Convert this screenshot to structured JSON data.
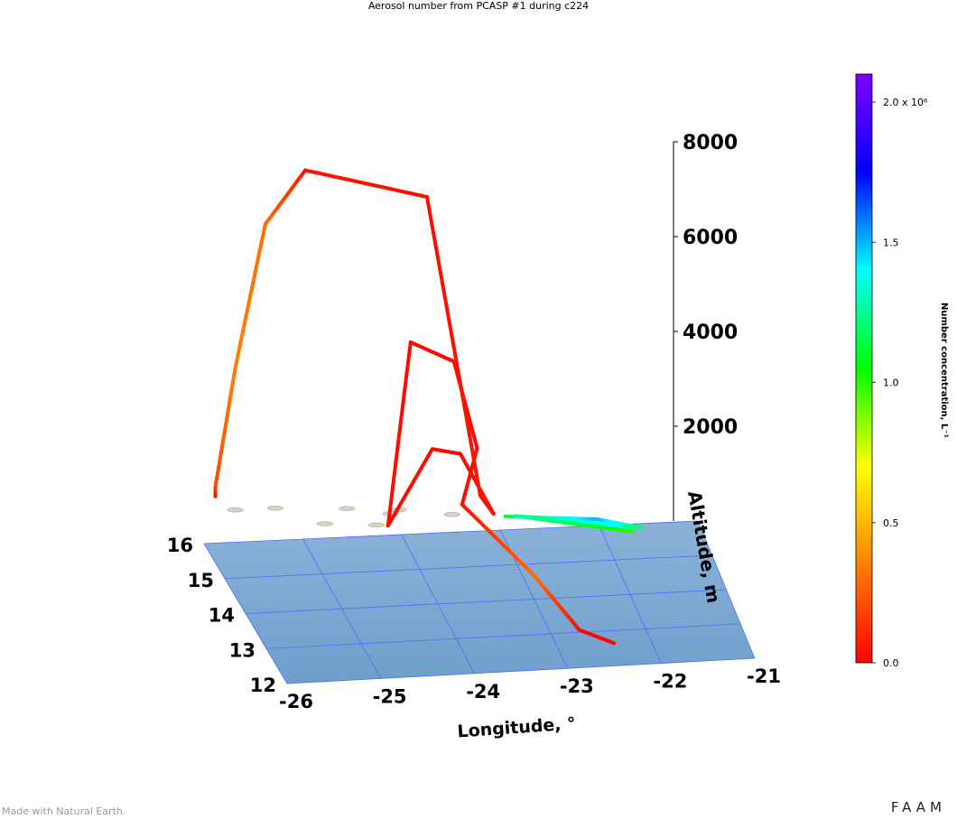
{
  "title": "Aerosol number from PCASP #1 during c224",
  "credit": "Made with Natural Earth.",
  "brand": "FAAM",
  "colorbar": {
    "label": "Number concentration, L⁻¹",
    "ticks": [
      {
        "value": 0.0,
        "label": "0.0"
      },
      {
        "value": 0.5,
        "label": "0.5"
      },
      {
        "value": 1.0,
        "label": "1.0"
      },
      {
        "value": 1.5,
        "label": "1.5"
      },
      {
        "value": 2.0,
        "label": "2.0 x 10⁶"
      }
    ],
    "range": [
      0,
      2.1
    ],
    "colormap": [
      "#ff0000",
      "#ff8000",
      "#ffff00",
      "#00ff00",
      "#00ffff",
      "#0000ff",
      "#8000ff"
    ]
  },
  "chart_data": {
    "type": "line",
    "projection": "3d",
    "title": "Aerosol number from PCASP #1 during c224",
    "xlabel": "Longitude, °",
    "ylabel": "",
    "zlabel": "Altitude, m",
    "xlim": [
      -26,
      -21
    ],
    "ylim": [
      12,
      16
    ],
    "zlim": [
      0,
      8000
    ],
    "xticks": [
      "-26",
      "-25",
      "-24",
      "-23",
      "-22",
      "-21"
    ],
    "yticks": [
      "12",
      "13",
      "14",
      "15",
      "16"
    ],
    "zticks": [
      "2000",
      "4000",
      "6000",
      "8000"
    ],
    "base_map": "Cape Verde islands, shaded relief",
    "series": [
      {
        "values": [
          {
            "lon": -22.4,
            "lat": 12.6,
            "alt": 30,
            "conc": 0.02
          },
          {
            "lon": -22.7,
            "lat": 13.0,
            "alt": 50,
            "conc": 0.02
          },
          {
            "lon": -22.9,
            "lat": 14.6,
            "alt": 60,
            "conc": 0.3
          },
          {
            "lon": -23.3,
            "lat": 16.5,
            "alt": 200,
            "conc": 0.05
          },
          {
            "lon": -23.2,
            "lat": 16.2,
            "alt": 1600,
            "conc": 0.03
          },
          {
            "lon": -23.4,
            "lat": 16.4,
            "alt": 3300,
            "conc": 0.03
          },
          {
            "lon": -23.8,
            "lat": 16.6,
            "alt": 3600,
            "conc": 0.03
          },
          {
            "lon": -24.1,
            "lat": 16.2,
            "alt": 50,
            "conc": 0.03
          },
          {
            "lon": -23.6,
            "lat": 16.5,
            "alt": 1400,
            "conc": 0.03
          },
          {
            "lon": -23.3,
            "lat": 16.6,
            "alt": 1200,
            "conc": 0.03
          },
          {
            "lon": -23.0,
            "lat": 16.4,
            "alt": 50,
            "conc": 0.03
          },
          {
            "lon": -23.1,
            "lat": 16.6,
            "alt": 300,
            "conc": 0.05
          },
          {
            "lon": -23.6,
            "lat": 16.8,
            "alt": 6500,
            "conc": 0.03
          },
          {
            "lon": -24.8,
            "lat": 16.9,
            "alt": 7100,
            "conc": 0.05
          },
          {
            "lon": -25.2,
            "lat": 16.9,
            "alt": 6000,
            "conc": 0.3
          },
          {
            "lon": -25.5,
            "lat": 16.9,
            "alt": 3000,
            "conc": 0.35
          },
          {
            "lon": -25.7,
            "lat": 16.9,
            "alt": 500,
            "conc": 0.2
          },
          {
            "lon": -25.7,
            "lat": 16.9,
            "alt": 300,
            "conc": 0.05
          }
        ]
      },
      {
        "values": [
          {
            "lon": -22.9,
            "lat": 16.3,
            "alt": 60,
            "conc": 1.1
          },
          {
            "lon": -22.0,
            "lat": 16.1,
            "alt": 60,
            "conc": 1.5
          },
          {
            "lon": -21.6,
            "lat": 15.8,
            "alt": 60,
            "conc": 1.2
          },
          {
            "lon": -22.6,
            "lat": 16.2,
            "alt": 60,
            "conc": 1.6
          },
          {
            "lon": -21.8,
            "lat": 15.9,
            "alt": 60,
            "conc": 1.4
          },
          {
            "lon": -22.8,
            "lat": 16.3,
            "alt": 60,
            "conc": 1.3
          },
          {
            "lon": -21.7,
            "lat": 15.7,
            "alt": 60,
            "conc": 1.0
          }
        ]
      }
    ]
  }
}
